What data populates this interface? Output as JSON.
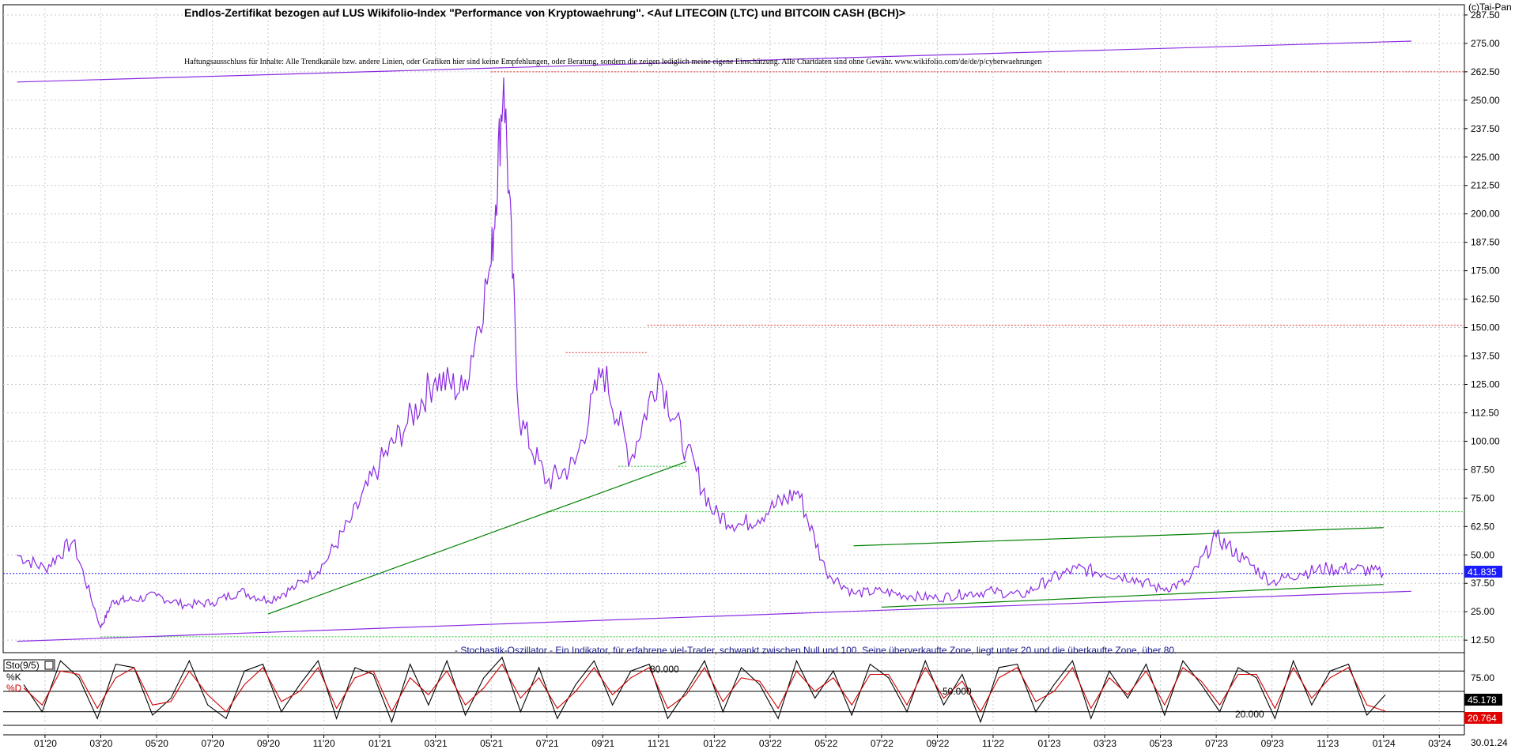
{
  "chart_data": [
    {
      "type": "line",
      "title": "Endlos-Zertifikat bezogen auf LUS Wikifolio-Index \"Performance von Kryptowaehrung\". <Auf LITECOIN (LTC) und BITCOIN CASH (BCH)>",
      "subtitle": "Haftungsausschluss für Inhalte: Alle Trendkanäle bzw. andere Linien, oder Grafiken hier sind keine Empfehlungen, oder Beratung, sondern die zeigen lediglich meine eigene Einschätzung. Alle Chartdaten sind ohne Gewähr.  www.wikifolio.com/de/de/p/cyberwaehrungen",
      "copyright": "(c)Tai-Pan",
      "y_ticks": [
        "287.50",
        "275.00",
        "262.50",
        "250.00",
        "237.50",
        "225.00",
        "212.50",
        "200.00",
        "187.50",
        "175.00",
        "162.50",
        "150.00",
        "137.50",
        "125.00",
        "112.50",
        "100.00",
        "87.50",
        "75.00",
        "62.50",
        "50.00",
        "37.50",
        "25.00",
        "12.50"
      ],
      "ylim": [
        7,
        292
      ],
      "x_ticks": [
        "01'20",
        "03'20",
        "05'20",
        "07'20",
        "09'20",
        "11'20",
        "01'21",
        "03'21",
        "05'21",
        "07'21",
        "09'21",
        "11'21",
        "01'22",
        "03'22",
        "05'22",
        "07'22",
        "09'22",
        "11'22",
        "01'23",
        "03'23",
        "05'23",
        "07'23",
        "09'23",
        "11'23",
        "01'24",
        "03'24"
      ],
      "last_date": "30.01.24",
      "last_value": "41.835",
      "series": [
        {
          "color": "#8a2be2",
          "x": [
            "12'19",
            "01'20",
            "02'20",
            "03'20",
            "03'20",
            "04'20",
            "05'20",
            "06'20",
            "07'20",
            "08'20",
            "09'20",
            "10'20",
            "11'20",
            "12'20",
            "01'21",
            "02'21",
            "03'21",
            "04'21",
            "05'21",
            "05'21",
            "06'21",
            "07'21",
            "08'21",
            "09'21",
            "10'21",
            "11'21",
            "12'21",
            "01'22",
            "02'22",
            "03'22",
            "04'22",
            "05'22",
            "06'22",
            "07'22",
            "08'22",
            "09'22",
            "10'22",
            "11'22",
            "12'22",
            "01'23",
            "02'23",
            "03'23",
            "04'23",
            "05'23",
            "06'23",
            "07'23",
            "08'23",
            "09'23",
            "10'23",
            "11'23",
            "12'23",
            "01'24"
          ],
          "y": [
            50,
            44,
            56,
            18,
            30,
            30,
            32,
            28,
            29,
            34,
            30,
            36,
            46,
            66,
            90,
            108,
            128,
            122,
            178,
            260,
            110,
            82,
            90,
            132,
            92,
            130,
            96,
            68,
            63,
            70,
            78,
            43,
            33,
            34,
            32,
            31,
            33,
            34,
            32,
            39,
            44,
            42,
            40,
            35,
            38,
            58,
            48,
            38,
            42,
            44,
            44,
            41.835
          ]
        }
      ],
      "trendlines": [
        {
          "color": "#8a2be2",
          "from": [
            "12'19",
            258
          ],
          "to": [
            "02'24",
            276
          ]
        },
        {
          "color": "#8a2be2",
          "from": [
            "12'19",
            12
          ],
          "to": [
            "02'24",
            34
          ]
        },
        {
          "color": "#008000",
          "from": [
            "09'20",
            24
          ],
          "to": [
            "12'21",
            91
          ]
        },
        {
          "color": "#008000",
          "from": [
            "06'22",
            54
          ],
          "to": [
            "01'24",
            62
          ]
        },
        {
          "color": "#008000",
          "from": [
            "07'22",
            27
          ],
          "to": [
            "01'24",
            37
          ]
        }
      ],
      "horizontal_lines": [
        {
          "color": "#e03030",
          "value": 262.5
        },
        {
          "color": "#e03030",
          "value": 151
        },
        {
          "color": "#e03030",
          "value": 139
        },
        {
          "color": "#22c022",
          "value": 89
        },
        {
          "color": "#22c022",
          "value": 69
        },
        {
          "color": "#22c022",
          "value": 14
        },
        {
          "color": "#1a1aff",
          "value": 41.835
        }
      ]
    },
    {
      "type": "line",
      "title": "- Stochastik-Oszillator - Ein Indikator, für erfahrene viel-Trader, schwankt zwischen Null und 100. Seine überverkaufte Zone, liegt unter 20 und die überkaufte Zone, über 80.",
      "label": "Sto(9/5)",
      "legend": [
        "%K",
        "%D"
      ],
      "y_ticks": [
        "75.00"
      ],
      "ylim": [
        0,
        100
      ],
      "reference_lines": [
        {
          "value": 80,
          "label": "80.000"
        },
        {
          "value": 50,
          "label": "50.000"
        },
        {
          "value": 20,
          "label": "20.000"
        }
      ],
      "last_k": "45.178",
      "last_d": "20.764",
      "series": [
        {
          "name": "%K",
          "color": "#000000",
          "values": [
            60,
            20,
            95,
            70,
            10,
            90,
            85,
            15,
            40,
            95,
            30,
            10,
            80,
            90,
            20,
            60,
            95,
            10,
            85,
            75,
            5,
            90,
            30,
            95,
            15,
            70,
            100,
            20,
            85,
            10,
            60,
            95,
            30,
            80,
            90,
            10,
            50,
            95,
            20,
            85,
            60,
            10,
            95,
            40,
            80,
            15,
            90,
            70,
            20,
            95,
            30,
            75,
            5,
            85,
            90,
            20,
            60,
            95,
            10,
            80,
            40,
            90,
            15,
            95,
            60,
            20,
            85,
            70,
            10,
            95,
            30,
            80,
            90,
            15,
            45
          ]
        },
        {
          "name": "%D",
          "color": "#d00000",
          "values": [
            55,
            30,
            80,
            75,
            25,
            70,
            85,
            30,
            35,
            80,
            45,
            20,
            60,
            85,
            35,
            50,
            85,
            25,
            70,
            80,
            20,
            70,
            45,
            80,
            30,
            55,
            90,
            40,
            70,
            25,
            50,
            85,
            45,
            70,
            85,
            25,
            45,
            85,
            35,
            70,
            65,
            25,
            80,
            50,
            70,
            30,
            75,
            75,
            30,
            85,
            40,
            65,
            20,
            70,
            85,
            35,
            50,
            85,
            25,
            70,
            45,
            80,
            30,
            85,
            65,
            30,
            75,
            75,
            25,
            85,
            40,
            70,
            85,
            30,
            20.764
          ]
        }
      ]
    }
  ]
}
